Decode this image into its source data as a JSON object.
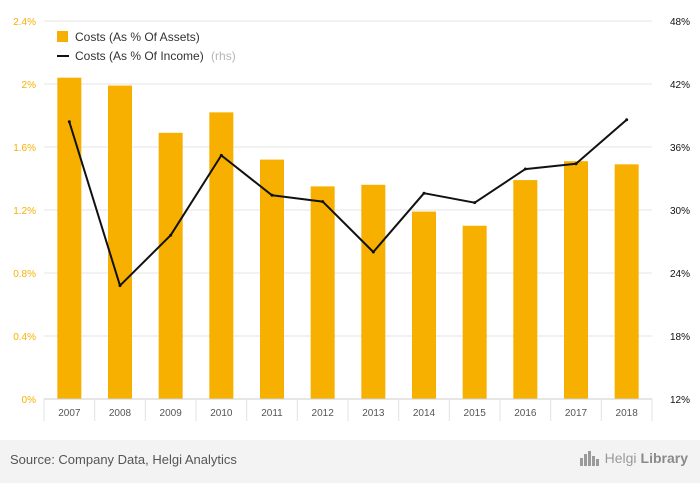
{
  "chart_data": {
    "type": "bar+line",
    "categories": [
      "2007",
      "2008",
      "2009",
      "2010",
      "2011",
      "2012",
      "2013",
      "2014",
      "2015",
      "2016",
      "2017",
      "2018"
    ],
    "series": [
      {
        "name": "Costs (As % Of Assets)",
        "kind": "bar",
        "axis": "left",
        "color": "#f7b000",
        "values": [
          2.04,
          1.99,
          1.69,
          1.82,
          1.52,
          1.35,
          1.36,
          1.19,
          1.1,
          1.39,
          1.51,
          1.49
        ]
      },
      {
        "name": "Costs (As % Of Income)",
        "suffix": "(rhs)",
        "kind": "line",
        "axis": "right",
        "color": "#111111",
        "values": [
          38.4,
          22.8,
          27.6,
          35.2,
          31.4,
          30.8,
          26.0,
          31.6,
          30.7,
          33.9,
          34.4,
          38.6
        ]
      }
    ],
    "y_left": {
      "min": 0,
      "max": 2.4,
      "ticks": [
        0,
        0.4,
        0.8,
        1.2,
        1.6,
        2.0,
        2.4
      ],
      "tick_labels": [
        "0%",
        "0.4%",
        "0.8%",
        "1.2%",
        "1.6%",
        "2%",
        "2.4%"
      ],
      "color": "#f7b000"
    },
    "y_right": {
      "min": 12,
      "max": 48,
      "ticks": [
        12,
        18,
        24,
        30,
        36,
        42,
        48
      ],
      "tick_labels": [
        "12%",
        "18%",
        "24%",
        "30%",
        "36%",
        "42%",
        "48%"
      ],
      "color": "#111111"
    },
    "grid": true,
    "legend": "top-left",
    "title": "",
    "xlabel": "",
    "ylabel": ""
  },
  "footer": {
    "source": "Source: Company Data, Helgi Analytics",
    "brand_light": "Helgi",
    "brand_bold": "Library"
  },
  "icons": {
    "brand_logo": "city-skyline-icon"
  }
}
